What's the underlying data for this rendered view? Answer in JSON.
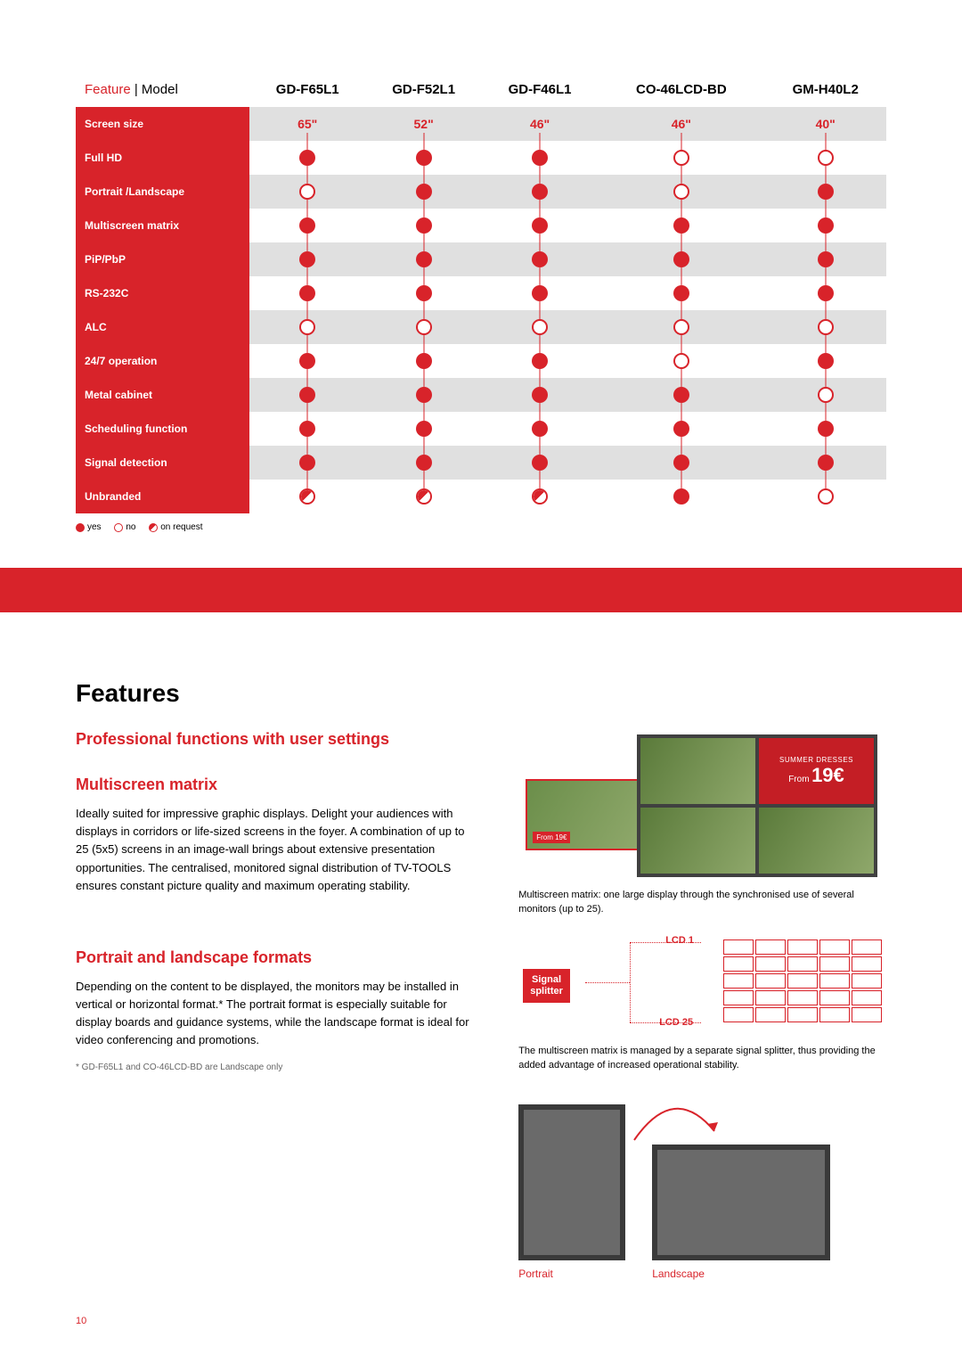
{
  "table": {
    "header_label_prefix": "Feature",
    "header_label_suffix": " | Model",
    "models": [
      "GD-F65L1",
      "GD-F52L1",
      "GD-F46L1",
      "CO-46LCD-BD",
      "GM-H40L2"
    ],
    "rows": [
      {
        "label": "Screen size",
        "type": "size",
        "values": [
          "65\"",
          "52\"",
          "46\"",
          "46\"",
          "40\""
        ],
        "alt": true
      },
      {
        "label": "Full HD",
        "type": "dots",
        "values": [
          "yes",
          "yes",
          "yes",
          "no",
          "no"
        ],
        "alt": false
      },
      {
        "label": "Portrait /Landscape",
        "type": "dots",
        "values": [
          "no",
          "yes",
          "yes",
          "no",
          "yes"
        ],
        "alt": true
      },
      {
        "label": "Multiscreen matrix",
        "type": "dots",
        "values": [
          "yes",
          "yes",
          "yes",
          "yes",
          "yes"
        ],
        "alt": false
      },
      {
        "label": "PiP/PbP",
        "type": "dots",
        "values": [
          "yes",
          "yes",
          "yes",
          "yes",
          "yes"
        ],
        "alt": true
      },
      {
        "label": "RS-232C",
        "type": "dots",
        "values": [
          "yes",
          "yes",
          "yes",
          "yes",
          "yes"
        ],
        "alt": false
      },
      {
        "label": "ALC",
        "type": "dots",
        "values": [
          "no",
          "no",
          "no",
          "no",
          "no"
        ],
        "alt": true
      },
      {
        "label": "24/7 operation",
        "type": "dots",
        "values": [
          "yes",
          "yes",
          "yes",
          "no",
          "yes"
        ],
        "alt": false
      },
      {
        "label": "Metal cabinet",
        "type": "dots",
        "values": [
          "yes",
          "yes",
          "yes",
          "yes",
          "no"
        ],
        "alt": true
      },
      {
        "label": "Scheduling function",
        "type": "dots",
        "values": [
          "yes",
          "yes",
          "yes",
          "yes",
          "yes"
        ],
        "alt": false
      },
      {
        "label": "Signal detection",
        "type": "dots",
        "values": [
          "yes",
          "yes",
          "yes",
          "yes",
          "yes"
        ],
        "alt": true
      },
      {
        "label": "Unbranded",
        "type": "dots",
        "values": [
          "req",
          "req",
          "req",
          "yes",
          "no"
        ],
        "alt": false
      }
    ],
    "legend": {
      "yes": "yes",
      "no": "no",
      "req": "on request"
    }
  },
  "features": {
    "title": "Features",
    "heading1": "Professional functions with user settings",
    "multiscreen": {
      "heading": "Multiscreen matrix",
      "text": "Ideally suited for impressive graphic displays. Delight your audiences with displays in corridors or life-sized screens in the foyer. A combination of up to 25 (5x5) screens in an image-wall brings about extensive presentation opportunities. The centralised, monitored signal distribution of TV-TOOLS ensures constant picture quality and maximum operating stability.",
      "illus_caption": "Multiscreen matrix: one large display through the synchronised use of several monitors (up to 25).",
      "price_small": "From 19€",
      "grid_title": "SUMMER DRESSES",
      "grid_price_prefix": "From",
      "grid_price": "19€",
      "splitter_label": "Signal splitter",
      "lcd1": "LCD 1",
      "lcd25": "LCD 25",
      "splitter_caption": "The multiscreen matrix is managed by a separate signal splitter, thus providing the added advantage of increased operational stability."
    },
    "portrait": {
      "heading": "Portrait and landscape formats",
      "text": "Depending on the content to be displayed, the monitors may be installed in vertical or horizontal format.* The portrait format is especially suitable for display boards and guidance systems, while the landscape format is ideal for video conferencing and promotions.",
      "footnote": "* GD-F65L1 and CO-46LCD-BD are Landscape only",
      "label_portrait": "Portrait",
      "label_landscape": "Landscape"
    }
  },
  "page_number": "10",
  "colors": {
    "red": "#d8232a",
    "grey_row": "#e0e0e0",
    "frame": "#3a3a3a"
  }
}
